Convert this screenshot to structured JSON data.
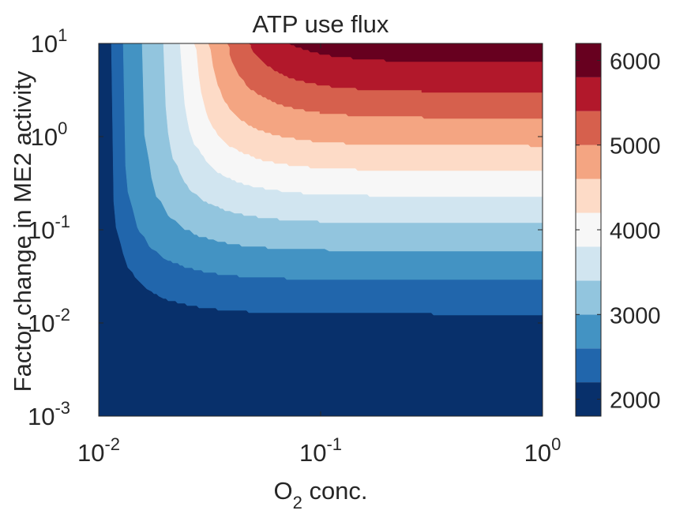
{
  "chart_data": {
    "type": "heatmap",
    "title": "ATP use flux",
    "xlabel": {
      "base": "O",
      "subscript": "2",
      "rest": " conc."
    },
    "ylabel": "Factor change in ME2 activity",
    "x_scale": "log",
    "y_scale": "log",
    "xlim": [
      0.01,
      1
    ],
    "ylim": [
      0.001,
      10
    ],
    "x_ticks": [
      {
        "value": 0.01,
        "base": "10",
        "exp": "-2"
      },
      {
        "value": 0.1,
        "base": "10",
        "exp": "-1"
      },
      {
        "value": 1,
        "base": "10",
        "exp": "0"
      }
    ],
    "y_ticks": [
      {
        "value": 0.001,
        "base": "10",
        "exp": "-3"
      },
      {
        "value": 0.01,
        "base": "10",
        "exp": "-2"
      },
      {
        "value": 0.1,
        "base": "10",
        "exp": "-1"
      },
      {
        "value": 1,
        "base": "10",
        "exp": "0"
      },
      {
        "value": 10,
        "base": "10",
        "exp": "1"
      }
    ],
    "colorbar": {
      "range": [
        1800,
        6200
      ],
      "ticks": [
        {
          "value": 2000,
          "label": "2000"
        },
        {
          "value": 3000,
          "label": "3000"
        },
        {
          "value": 4000,
          "label": "4000"
        },
        {
          "value": 5000,
          "label": "5000"
        },
        {
          "value": 6000,
          "label": "6000"
        }
      ],
      "levels": [
        {
          "min": 1800,
          "max": 2200,
          "color": "#08306b"
        },
        {
          "min": 2200,
          "max": 2600,
          "color": "#2166ac"
        },
        {
          "min": 2600,
          "max": 3000,
          "color": "#4393c3"
        },
        {
          "min": 3000,
          "max": 3400,
          "color": "#92c5de"
        },
        {
          "min": 3400,
          "max": 3800,
          "color": "#d1e5f0"
        },
        {
          "min": 3800,
          "max": 4200,
          "color": "#f7f7f7"
        },
        {
          "min": 4200,
          "max": 4600,
          "color": "#fddbc7"
        },
        {
          "min": 4600,
          "max": 5000,
          "color": "#f4a582"
        },
        {
          "min": 5000,
          "max": 5400,
          "color": "#d6604d"
        },
        {
          "min": 5400,
          "max": 5800,
          "color": "#b2182b"
        },
        {
          "min": 5800,
          "max": 6200,
          "color": "#67001f"
        }
      ]
    },
    "contours": [
      {
        "level": 2200,
        "plateau_y": 0.0125,
        "x_asymptote": 0.0113,
        "y_asymptote": 0.01,
        "x_start": 0.0113
      },
      {
        "level": 2600,
        "plateau_y": 0.0291,
        "x_asymptote": 0.0128,
        "y_asymptote": 0.024,
        "x_start": 0.0128
      },
      {
        "level": 3000,
        "plateau_y": 0.0595,
        "x_asymptote": 0.0158,
        "y_asymptote": 0.05,
        "x_start": 0.0158
      },
      {
        "level": 3400,
        "plateau_y": 0.118,
        "x_asymptote": 0.0195,
        "y_asymptote": 0.1,
        "x_start": 0.0195
      },
      {
        "level": 3800,
        "plateau_y": 0.229,
        "x_asymptote": 0.0232,
        "y_asymptote": 0.2,
        "x_start": 0.0232
      },
      {
        "level": 4200,
        "plateau_y": 0.43,
        "x_asymptote": 0.0267,
        "y_asymptote": 0.38,
        "x_start": 0.0267
      },
      {
        "level": 4600,
        "plateau_y": 0.798,
        "x_asymptote": 0.0305,
        "y_asymptote": 0.7,
        "x_start": 0.0305
      },
      {
        "level": 5000,
        "plateau_y": 1.59,
        "x_asymptote": 0.035,
        "y_asymptote": 1.35,
        "x_start": 0.035
      },
      {
        "level": 5400,
        "plateau_y": 3.01,
        "x_asymptote": 0.04,
        "y_asymptote": 2.6,
        "x_start": 0.04
      },
      {
        "level": 5800,
        "plateau_y": 6.23,
        "x_asymptote": 0.0445,
        "y_asymptote": 5.5,
        "x_start": 0.0445
      }
    ],
    "grid": false,
    "colorbar_position": "right"
  }
}
